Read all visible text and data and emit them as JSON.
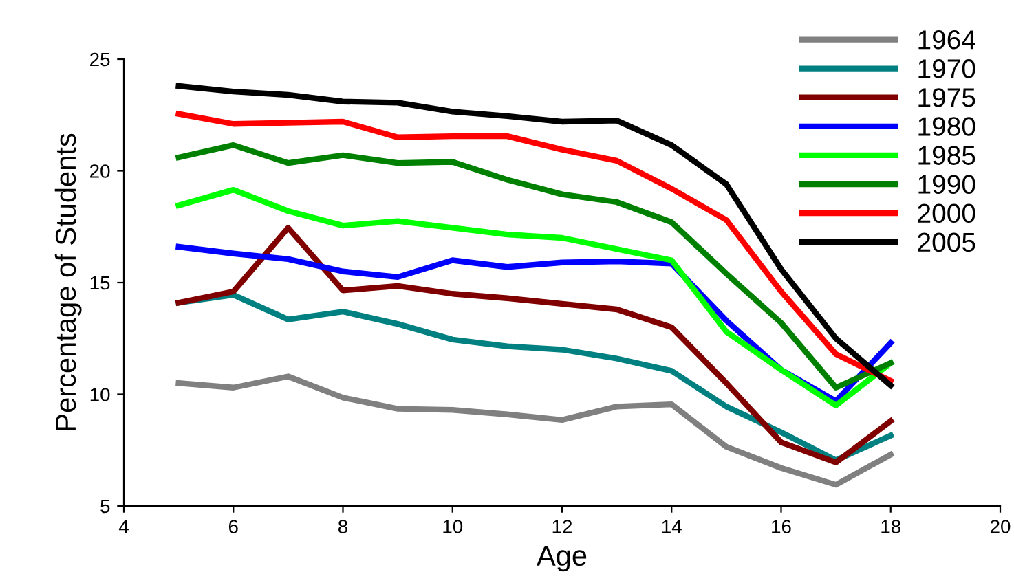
{
  "chart_data": {
    "type": "line",
    "xlabel": "Age",
    "ylabel": "Percentage of Students",
    "x": [
      5,
      6,
      7,
      8,
      9,
      10,
      11,
      12,
      13,
      14,
      15,
      16,
      17,
      18
    ],
    "xlim": [
      4,
      20
    ],
    "xticks": [
      4,
      6,
      8,
      10,
      12,
      14,
      16,
      18,
      20
    ],
    "ylim": [
      5,
      25
    ],
    "yticks": [
      5,
      10,
      15,
      20,
      25
    ],
    "grid": false,
    "legend": "top right",
    "marker": "none",
    "line_style": "solid",
    "series": [
      {
        "name": "1964",
        "color": "#808080",
        "values": [
          10.5,
          10.3,
          10.8,
          9.85,
          9.35,
          9.3,
          9.1,
          8.85,
          9.45,
          9.55,
          7.65,
          6.7,
          5.95,
          7.3
        ]
      },
      {
        "name": "1970",
        "color": "#008080",
        "values": [
          14.1,
          14.45,
          13.35,
          13.7,
          13.15,
          12.45,
          12.15,
          12.0,
          11.6,
          11.05,
          9.45,
          8.3,
          7.05,
          8.15
        ]
      },
      {
        "name": "1975",
        "color": "#800000",
        "values": [
          14.1,
          14.6,
          17.45,
          14.65,
          14.85,
          14.5,
          14.3,
          14.05,
          13.8,
          13.0,
          10.5,
          7.85,
          6.95,
          8.8
        ]
      },
      {
        "name": "1980",
        "color": "#0000ff",
        "values": [
          16.6,
          16.3,
          16.05,
          15.5,
          15.25,
          16.0,
          15.7,
          15.9,
          15.95,
          15.85,
          13.3,
          11.1,
          9.7,
          12.3
        ]
      },
      {
        "name": "1985",
        "color": "#00ff00",
        "values": [
          18.45,
          19.15,
          18.2,
          17.55,
          17.75,
          17.45,
          17.15,
          17.0,
          16.5,
          16.0,
          12.8,
          11.1,
          9.5,
          11.4
        ]
      },
      {
        "name": "1990",
        "color": "#008000",
        "values": [
          20.6,
          21.15,
          20.35,
          20.7,
          20.35,
          20.4,
          19.6,
          18.95,
          18.6,
          17.7,
          15.4,
          13.2,
          10.3,
          11.4
        ]
      },
      {
        "name": "2000",
        "color": "#ff0000",
        "values": [
          22.55,
          22.1,
          22.15,
          22.2,
          21.5,
          21.55,
          21.55,
          20.95,
          20.45,
          19.2,
          17.8,
          14.6,
          11.8,
          10.6
        ]
      },
      {
        "name": "2005",
        "color": "#000000",
        "values": [
          23.8,
          23.55,
          23.4,
          23.1,
          23.05,
          22.65,
          22.45,
          22.2,
          22.25,
          21.15,
          19.4,
          15.6,
          12.5,
          10.4
        ]
      }
    ]
  }
}
